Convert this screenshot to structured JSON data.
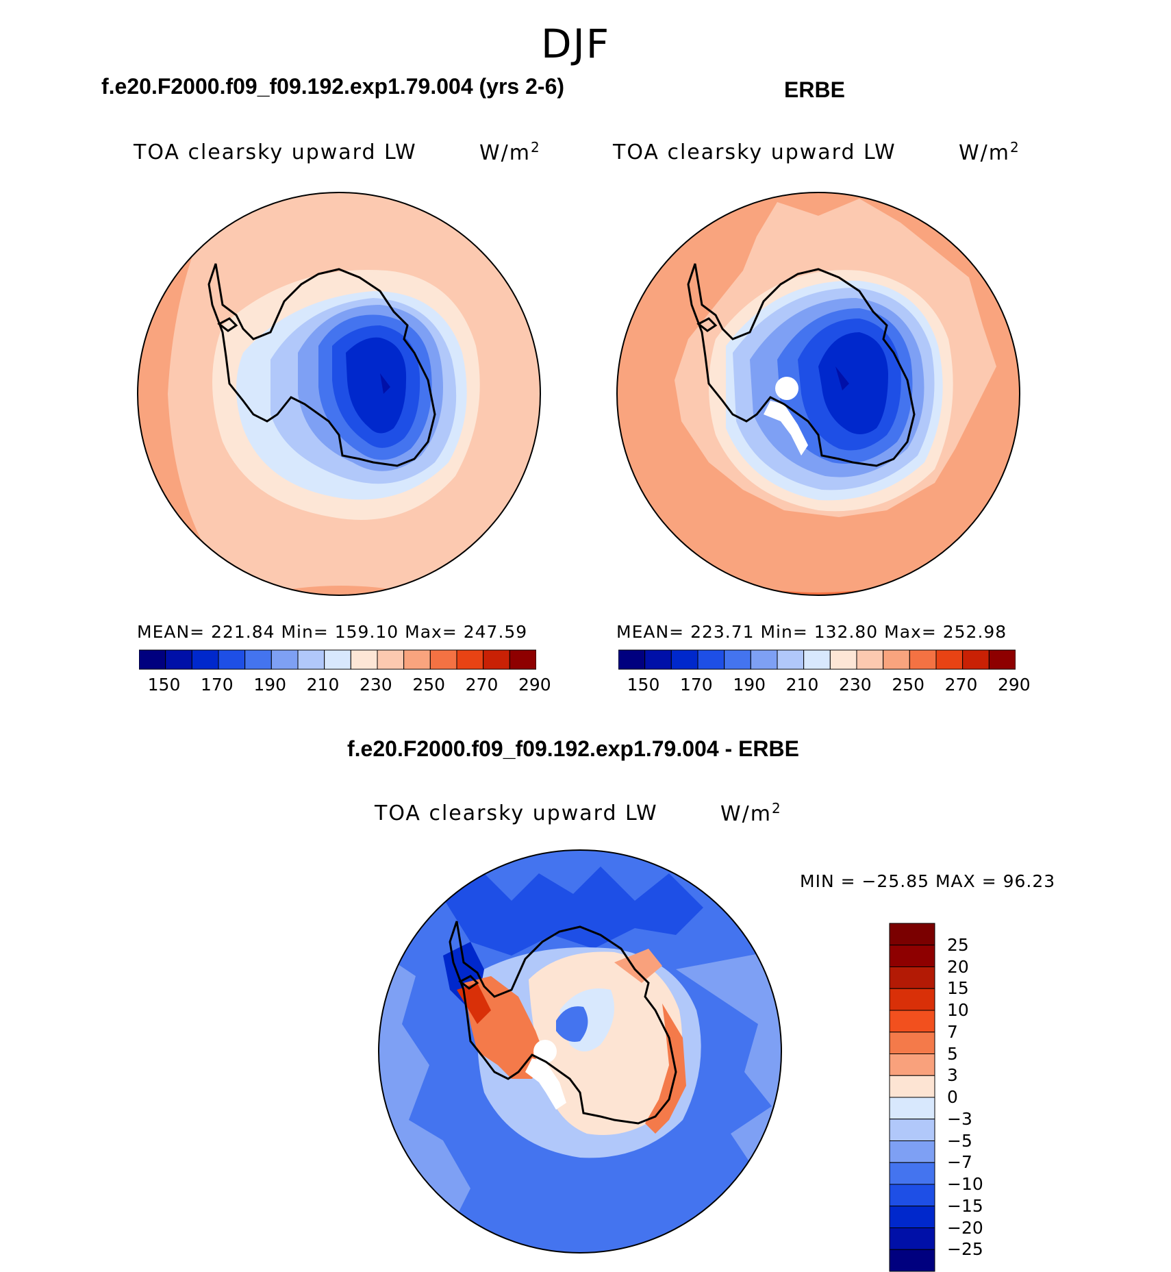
{
  "season": "DJF",
  "colors": {
    "abs_scale": [
      "#00007f",
      "#0010a8",
      "#0028cc",
      "#1e4fe6",
      "#4474ef",
      "#7ea0f4",
      "#b1c8fa",
      "#d8e8fd",
      "#fde6d6",
      "#fcc9b0",
      "#f9a47e",
      "#f47243",
      "#e84314",
      "#c92105",
      "#8e0000"
    ],
    "diff_scale": [
      "#8e0000",
      "#b31a05",
      "#d93008",
      "#f2501e",
      "#f47a4a",
      "#f9a17c",
      "#fde4d3",
      "#d8e8fd",
      "#b1c8fa",
      "#7ea0f4",
      "#4474ef",
      "#1e4fe6",
      "#0028cc",
      "#0010a8",
      "#00007f"
    ]
  },
  "panels": {
    "model": {
      "case_title": "f.e20.F2000.f09_f09.192.exp1.79.004 (yrs 2-6)",
      "var_title": "TOA clearsky upward LW",
      "units": "W/m",
      "units_exp": "2",
      "stats": "MEAN= 221.84   Min= 159.10   Max= 247.59",
      "colorbar_labels": [
        "150",
        "170",
        "190",
        "210",
        "230",
        "250",
        "270",
        "290"
      ]
    },
    "obs": {
      "case_title": "ERBE",
      "var_title": "TOA clearsky upward LW",
      "units": "W/m",
      "units_exp": "2",
      "stats": "MEAN= 223.71   Min= 132.80   Max= 252.98",
      "colorbar_labels": [
        "150",
        "170",
        "190",
        "210",
        "230",
        "250",
        "270",
        "290"
      ]
    },
    "diff": {
      "case_title": "f.e20.F2000.f09_f09.192.exp1.79.004 - ERBE",
      "var_title": "TOA clearsky upward LW",
      "units": "W/m",
      "units_exp": "2",
      "stats": "MIN = −25.85 MAX =   96.23",
      "colorbar_labels": [
        "25",
        "20",
        "15",
        "10",
        "7",
        "5",
        "3",
        "0",
        "−3",
        "−5",
        "−7",
        "−10",
        "−15",
        "−20",
        "−25"
      ]
    }
  }
}
